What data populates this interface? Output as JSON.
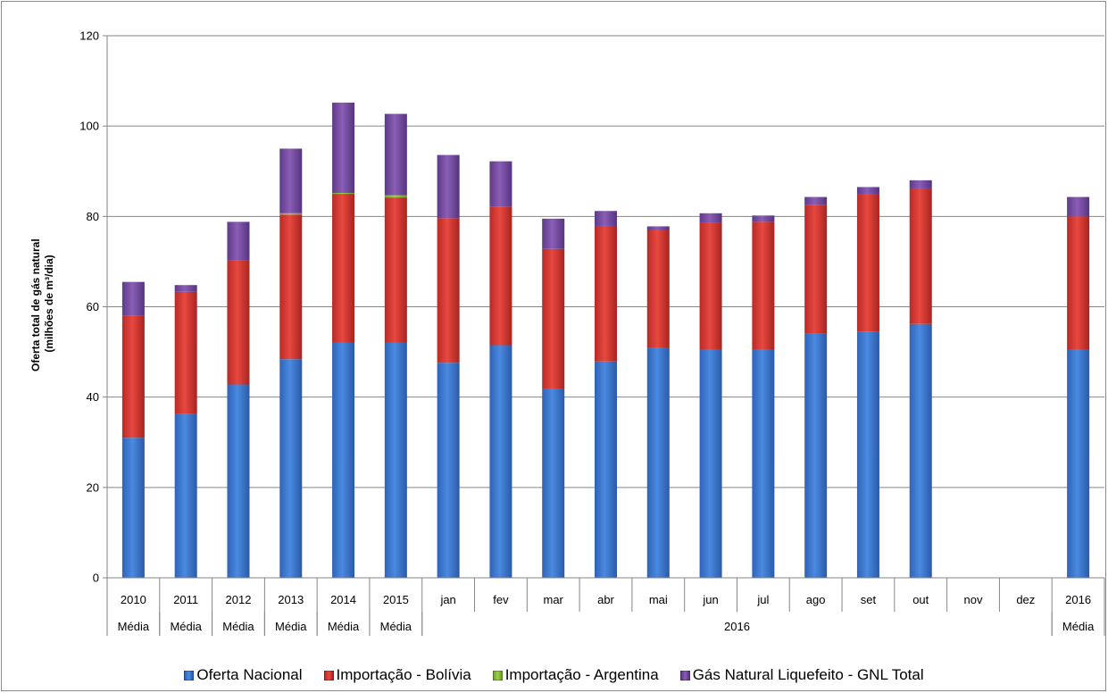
{
  "chart_data": {
    "type": "bar",
    "stacked": true,
    "categories": [
      "2010",
      "2011",
      "2012",
      "2013",
      "2014",
      "2015",
      "jan",
      "fev",
      "mar",
      "abr",
      "mai",
      "jun",
      "jul",
      "ago",
      "set",
      "out",
      "nov",
      "dez",
      "2016"
    ],
    "category_groups": [
      "Média",
      "Média",
      "Média",
      "Média",
      "Média",
      "Média",
      "2016",
      "2016",
      "2016",
      "2016",
      "2016",
      "2016",
      "2016",
      "2016",
      "2016",
      "2016",
      "2016",
      "2016",
      "Média"
    ],
    "group_labels": [
      {
        "label": "Média",
        "from": 0,
        "to": 0
      },
      {
        "label": "Média",
        "from": 1,
        "to": 1
      },
      {
        "label": "Média",
        "from": 2,
        "to": 2
      },
      {
        "label": "Média",
        "from": 3,
        "to": 3
      },
      {
        "label": "Média",
        "from": 4,
        "to": 4
      },
      {
        "label": "Média",
        "from": 5,
        "to": 5
      },
      {
        "label": "2016",
        "from": 6,
        "to": 17
      },
      {
        "label": "Média",
        "from": 18,
        "to": 18
      }
    ],
    "series": [
      {
        "name": "Oferta Nacional",
        "color": "#3a7bd5",
        "values": [
          31,
          36.3,
          42.8,
          48.4,
          52,
          52,
          47.6,
          51.5,
          41.8,
          47.9,
          51,
          50.5,
          50.5,
          54,
          54.5,
          56.2,
          null,
          null,
          50.5
        ]
      },
      {
        "name": "Importação - Bolívia",
        "color": "#d83a34",
        "values": [
          27,
          27,
          27.5,
          32,
          33,
          32.2,
          32,
          30.7,
          31,
          30,
          26,
          28,
          28.3,
          28.5,
          30.5,
          30,
          null,
          null,
          29.5
        ]
      },
      {
        "name": "Importação - Argentina",
        "color": "#8bbf3a",
        "values": [
          0,
          0,
          0,
          0.3,
          0.2,
          0.5,
          0,
          0,
          0,
          0,
          0,
          0,
          0,
          0,
          0,
          0,
          null,
          null,
          0
        ]
      },
      {
        "name": "Gás Natural Liquefeito - GNL Total",
        "color": "#7a4fa3",
        "values": [
          7.5,
          1.5,
          8.5,
          14.3,
          20,
          18,
          14,
          10,
          6.7,
          3.3,
          0.8,
          2.2,
          1.4,
          1.8,
          1.5,
          1.8,
          null,
          null,
          4.3
        ]
      }
    ],
    "ylabel": "Oferta total  de gás natural\n(milhões de m³/dia)",
    "ylabel_lines": [
      "Oferta total  de gás natural",
      "(milhões de m³/dia)"
    ],
    "ylim": [
      0,
      120
    ],
    "yticks": [
      0,
      20,
      40,
      60,
      80,
      100,
      120
    ],
    "grid": true,
    "legend_position": "bottom"
  }
}
